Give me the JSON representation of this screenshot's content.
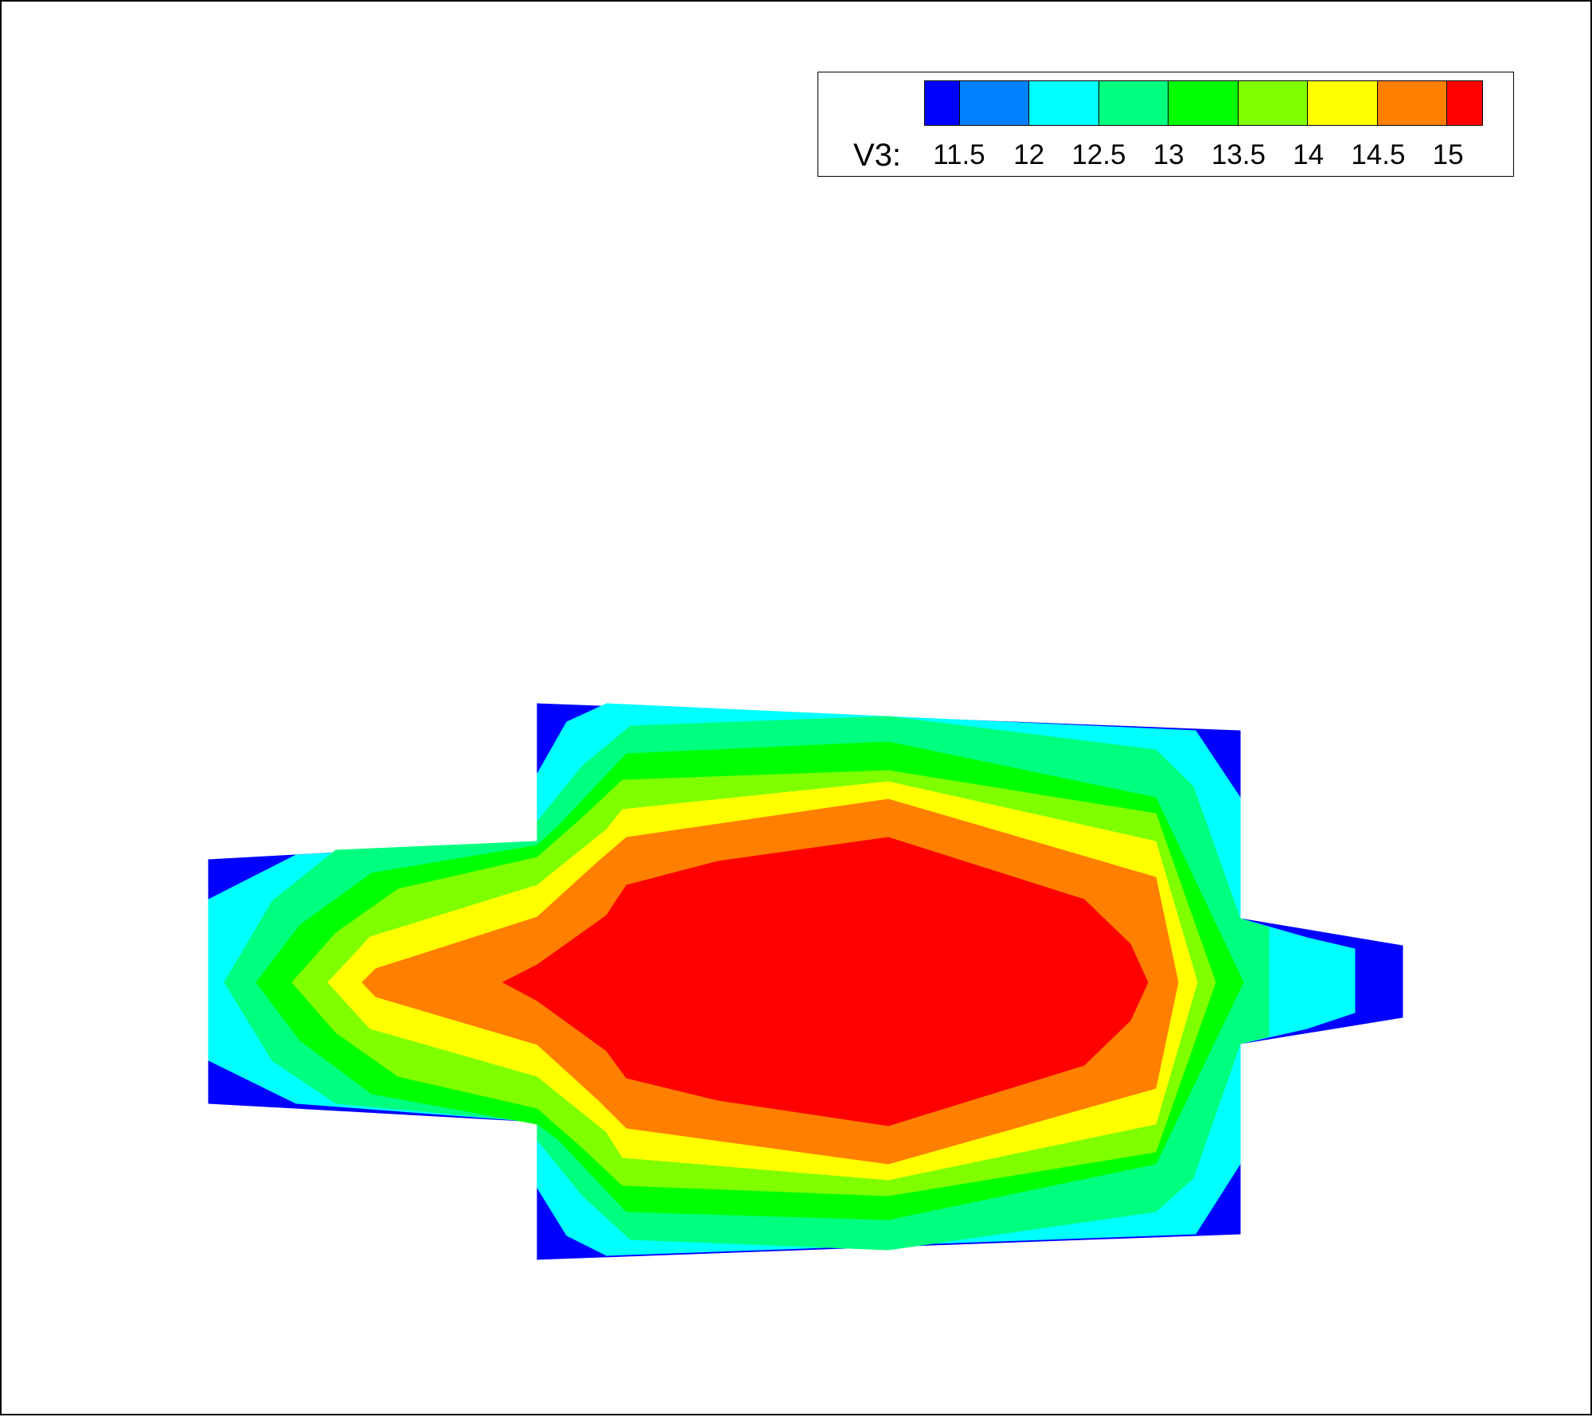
{
  "chart_data": {
    "type": "heatmap",
    "title": "",
    "variable": "V3",
    "legend_label": "V3:",
    "legend_placement": "top-right",
    "grid": false,
    "levels": [
      11,
      11.5,
      12,
      12.5,
      13,
      13.5,
      14,
      14.5,
      15,
      15.5
    ],
    "tick_labels": [
      "11.5",
      "12",
      "12.5",
      "13",
      "13.5",
      "14",
      "14.5",
      "15"
    ],
    "colors": [
      "#0000ff",
      "#007fff",
      "#00ffff",
      "#00ff7f",
      "#00ff00",
      "#7fff00",
      "#ffff00",
      "#ff7f00",
      "#ff0000"
    ],
    "value_range": [
      11,
      15.5
    ],
    "max_region_value": 15
  }
}
